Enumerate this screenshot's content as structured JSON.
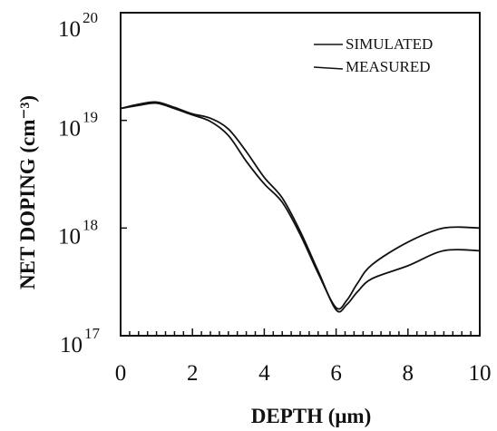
{
  "chart_data": {
    "type": "line",
    "title": "",
    "xlabel": "DEPTH (μm)",
    "ylabel": "NET DOPING (cm⁻³)",
    "xlim": [
      0,
      10
    ],
    "ylim": [
      17,
      20
    ],
    "y_scale": "log10",
    "x_ticks": [
      "0",
      "2",
      "4",
      "6",
      "8",
      "10"
    ],
    "y_ticks": [
      {
        "base": "10",
        "exp": "17",
        "value": 17
      },
      {
        "base": "10",
        "exp": "18",
        "value": 18
      },
      {
        "base": "10",
        "exp": "19",
        "value": 19
      },
      {
        "base": "10",
        "exp": "20",
        "value": 20
      }
    ],
    "grid": false,
    "legend_position": "top-right",
    "series": [
      {
        "name": "SIMULATED",
        "x": [
          0,
          0.5,
          1.0,
          1.5,
          2.0,
          2.5,
          3.0,
          3.5,
          4.0,
          4.5,
          5.0,
          5.5,
          6.0,
          6.3,
          6.6,
          7.0,
          8.0,
          9.0,
          10.0
        ],
        "y": [
          19.11,
          19.14,
          19.16,
          19.11,
          19.05,
          18.99,
          18.86,
          18.62,
          18.41,
          18.24,
          17.94,
          17.58,
          17.26,
          17.33,
          17.49,
          17.66,
          17.87,
          18.0,
          18.0
        ]
      },
      {
        "name": "MEASURED",
        "x": [
          0,
          0.5,
          1.0,
          1.5,
          2.0,
          2.5,
          3.0,
          3.5,
          4.0,
          4.5,
          5.0,
          5.5,
          6.0,
          6.3,
          6.6,
          7.0,
          8.0,
          9.0,
          10.0
        ],
        "y": [
          19.11,
          19.15,
          19.17,
          19.12,
          19.06,
          19.02,
          18.92,
          18.71,
          18.47,
          18.28,
          17.97,
          17.6,
          17.24,
          17.29,
          17.41,
          17.53,
          17.65,
          17.79,
          17.79
        ]
      }
    ]
  }
}
